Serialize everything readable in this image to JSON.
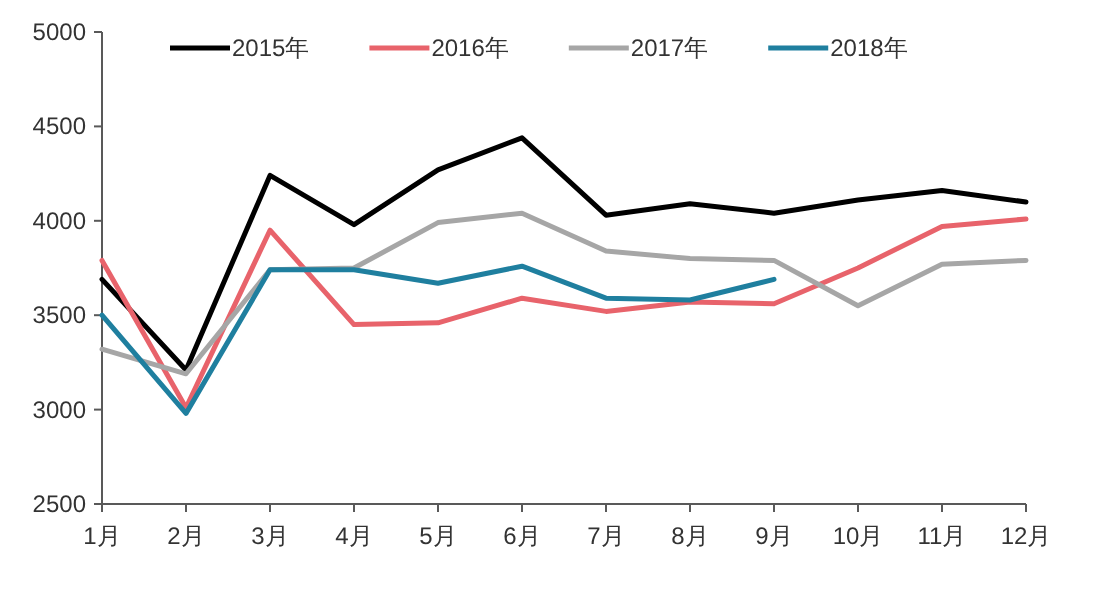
{
  "chart_data": {
    "type": "line",
    "categories": [
      "1月",
      "2月",
      "3月",
      "4月",
      "5月",
      "6月",
      "7月",
      "8月",
      "9月",
      "10月",
      "11月",
      "12月"
    ],
    "ylim": [
      2500,
      5000
    ],
    "yticks": [
      2500,
      3000,
      3500,
      4000,
      4500,
      5000
    ],
    "grid": false,
    "legend": "top",
    "marker": "none",
    "series": [
      {
        "name": "2015年",
        "color": "#000000",
        "values": [
          3690,
          3210,
          4240,
          3980,
          4270,
          4440,
          4030,
          4090,
          4040,
          4110,
          4160,
          4100
        ]
      },
      {
        "name": "2016年",
        "color": "#e8636b",
        "values": [
          3790,
          3010,
          3950,
          3450,
          3460,
          3590,
          3520,
          3570,
          3560,
          3750,
          3970,
          4010
        ]
      },
      {
        "name": "2017年",
        "color": "#a6a6a6",
        "values": [
          3320,
          3190,
          3740,
          3750,
          3990,
          4040,
          3840,
          3800,
          3790,
          3550,
          3770,
          3790
        ]
      },
      {
        "name": "2018年",
        "color": "#1f7f9f",
        "values": [
          3500,
          2980,
          3740,
          3740,
          3670,
          3760,
          3590,
          3580,
          3690,
          null,
          null,
          null
        ]
      }
    ]
  }
}
